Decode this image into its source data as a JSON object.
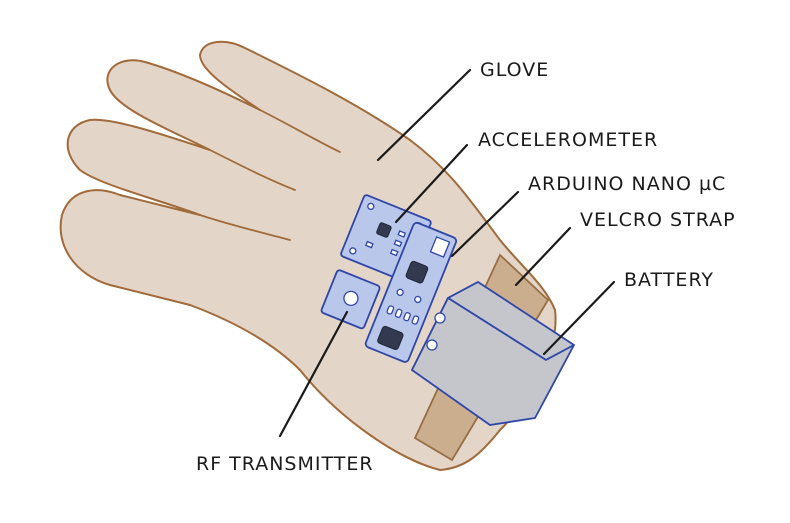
{
  "labels": {
    "glove": "GLOVE",
    "accelerometer": "ACCELEROMETER",
    "arduino": "ARDUINO NANO µC",
    "velcro": "VELCRO STRAP",
    "battery": "BATTERY",
    "rf": "RF TRANSMITTER"
  },
  "colors": {
    "glove_fill": "#e3d6c8",
    "glove_outline": "#a06a3a",
    "pcb_fill": "#b9c7ea",
    "pcb_outline": "#2f46a8",
    "battery_fill": "#c5c6cc",
    "strap_fill": "#c9aa88"
  }
}
